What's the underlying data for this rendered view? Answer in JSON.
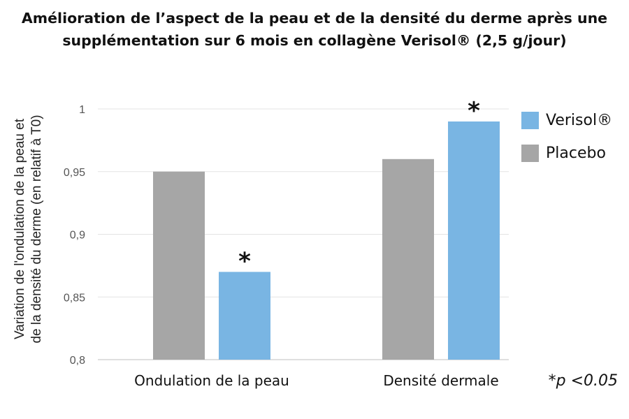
{
  "chart_data": {
    "type": "bar",
    "title_line1": "Amélioration de l’aspect de la peau et de la densité du derme après une",
    "title_line2": "supplémentation sur 6 mois en collagène Verisol® (2,5 g/jour)",
    "ylabel_line1": "Variation de l'ondulation de la peau et",
    "ylabel_line2": "de la densité du derme (en relatif à T0)",
    "xlabel": "",
    "categories": [
      "Ondulation de la peau",
      "Densité dermale"
    ],
    "series": [
      {
        "name": "Placebo",
        "values": [
          0.95,
          0.96
        ],
        "color": "#a6a6a6"
      },
      {
        "name": "Verisol®",
        "values": [
          0.87,
          0.99
        ],
        "color": "#79b5e3"
      }
    ],
    "significance_markers": [
      {
        "category": 0,
        "series": "Verisol®",
        "label": "*"
      },
      {
        "category": 1,
        "series": "Verisol®",
        "label": "*"
      }
    ],
    "ylim": [
      0.8,
      1
    ],
    "yticks": [
      0.8,
      0.85,
      0.9,
      0.95,
      1
    ],
    "ytick_labels": [
      "0,8",
      "0,85",
      "0,9",
      "0,95",
      "1"
    ],
    "grid": true,
    "legend_position": "right",
    "legend_order": [
      "Verisol®",
      "Placebo"
    ],
    "footnote": "*p <0.05"
  }
}
